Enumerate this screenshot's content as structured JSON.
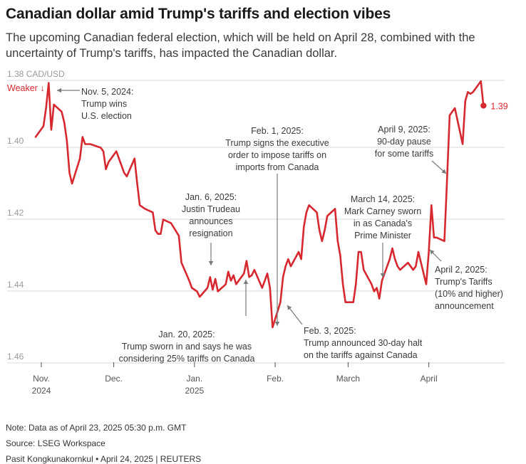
{
  "header": {
    "title": "Canadian dollar amid Trump's tariffs and election vibes",
    "subtitle": "The upcoming Canadian federal election, which will be held on April 28, combined with the uncertainty of Trump's tariffs, has impacted the Canadian dollar."
  },
  "footer": {
    "note": "Note: Data as of April 23, 2025 05:30 p.m. GMT",
    "source": "Source: LSEG Workspace",
    "credit": "Pasit Kongkunakornkul • April 24, 2025 | REUTERS"
  },
  "colors": {
    "line": "#d7282f",
    "grid": "#d9d9d9",
    "annotation": "#3a3a3a",
    "arrow": "#7a7a7a"
  },
  "chart_data": {
    "type": "line",
    "y_unit_label": "1.38 CAD/USD",
    "y_direction_label": "Weaker ↓",
    "y_reversed": true,
    "ylim": [
      1.38,
      1.46
    ],
    "y_ticks": [
      "1.40",
      "1.42",
      "1.44",
      "1.46"
    ],
    "y_tick_values": [
      1.4,
      1.42,
      1.44,
      1.46
    ],
    "x_ticks": [
      {
        "date": "2024-11-01",
        "label": [
          "Nov.",
          "2024"
        ]
      },
      {
        "date": "2024-12-01",
        "label": [
          "Dec."
        ]
      },
      {
        "date": "2025-01-01",
        "label": [
          "Jan.",
          "2025"
        ]
      },
      {
        "date": "2025-02-01",
        "label": [
          "Feb."
        ]
      },
      {
        "date": "2025-03-01",
        "label": [
          "March"
        ]
      },
      {
        "date": "2025-04-01",
        "label": [
          "April"
        ]
      }
    ],
    "xlim": [
      "2024-11-01",
      "2025-04-23"
    ],
    "last_value_label": "1.39",
    "series": [
      {
        "points": [
          [
            "2024-11-01",
            1.3975
          ],
          [
            "2024-11-04",
            1.3945
          ],
          [
            "2024-11-05",
            1.3895
          ],
          [
            "2024-11-06",
            1.3825
          ],
          [
            "2024-11-07",
            1.3955
          ],
          [
            "2024-11-08",
            1.3885
          ],
          [
            "2024-11-11",
            1.3905
          ],
          [
            "2024-11-12",
            1.3935
          ],
          [
            "2024-11-13",
            1.3985
          ],
          [
            "2024-11-14",
            1.4075
          ],
          [
            "2024-11-15",
            1.4105
          ],
          [
            "2024-11-18",
            1.4035
          ],
          [
            "2024-11-19",
            1.3975
          ],
          [
            "2024-11-20",
            1.3995
          ],
          [
            "2024-11-22",
            1.3995
          ],
          [
            "2024-11-26",
            1.4005
          ],
          [
            "2024-11-27",
            1.4015
          ],
          [
            "2024-11-28",
            1.4065
          ],
          [
            "2024-11-29",
            1.4045
          ],
          [
            "2024-12-02",
            1.4015
          ],
          [
            "2024-12-05",
            1.4075
          ],
          [
            "2024-12-06",
            1.4085
          ],
          [
            "2024-12-09",
            1.4035
          ],
          [
            "2024-12-10",
            1.4105
          ],
          [
            "2024-12-11",
            1.4165
          ],
          [
            "2024-12-13",
            1.4175
          ],
          [
            "2024-12-16",
            1.4185
          ],
          [
            "2024-12-17",
            1.4235
          ],
          [
            "2024-12-18",
            1.4245
          ],
          [
            "2024-12-19",
            1.4245
          ],
          [
            "2024-12-20",
            1.4205
          ],
          [
            "2024-12-23",
            1.4215
          ],
          [
            "2024-12-26",
            1.425
          ],
          [
            "2024-12-27",
            1.4325
          ],
          [
            "2024-12-30",
            1.4375
          ],
          [
            "2024-12-31",
            1.4395
          ],
          [
            "2025-01-02",
            1.4405
          ],
          [
            "2025-01-03",
            1.442
          ],
          [
            "2025-01-06",
            1.4395
          ],
          [
            "2025-01-07",
            1.4365
          ],
          [
            "2025-01-08",
            1.44
          ],
          [
            "2025-01-09",
            1.437
          ],
          [
            "2025-01-10",
            1.4405
          ],
          [
            "2025-01-13",
            1.4385
          ],
          [
            "2025-01-14",
            1.435
          ],
          [
            "2025-01-15",
            1.4375
          ],
          [
            "2025-01-16",
            1.436
          ],
          [
            "2025-01-17",
            1.4385
          ],
          [
            "2025-01-20",
            1.4355
          ],
          [
            "2025-01-21",
            1.432
          ],
          [
            "2025-01-22",
            1.4365
          ],
          [
            "2025-01-23",
            1.436
          ],
          [
            "2025-01-24",
            1.4345
          ],
          [
            "2025-01-27",
            1.4395
          ],
          [
            "2025-01-28",
            1.4375
          ],
          [
            "2025-01-29",
            1.4355
          ],
          [
            "2025-01-30",
            1.4395
          ],
          [
            "2025-01-31",
            1.4505
          ],
          [
            "2025-02-03",
            1.4435
          ],
          [
            "2025-02-04",
            1.4365
          ],
          [
            "2025-02-05",
            1.4335
          ],
          [
            "2025-02-06",
            1.4315
          ],
          [
            "2025-02-07",
            1.4335
          ],
          [
            "2025-02-10",
            1.4295
          ],
          [
            "2025-02-11",
            1.4315
          ],
          [
            "2025-02-12",
            1.4225
          ],
          [
            "2025-02-13",
            1.4185
          ],
          [
            "2025-02-14",
            1.4165
          ],
          [
            "2025-02-17",
            1.4185
          ],
          [
            "2025-02-18",
            1.4235
          ],
          [
            "2025-02-19",
            1.4265
          ],
          [
            "2025-02-20",
            1.4235
          ],
          [
            "2025-02-21",
            1.4195
          ],
          [
            "2025-02-24",
            1.4175
          ],
          [
            "2025-02-25",
            1.4265
          ],
          [
            "2025-02-26",
            1.4305
          ],
          [
            "2025-02-27",
            1.4385
          ],
          [
            "2025-02-28",
            1.4435
          ],
          [
            "2025-03-03",
            1.4435
          ],
          [
            "2025-03-04",
            1.4385
          ],
          [
            "2025-03-05",
            1.4295
          ],
          [
            "2025-03-06",
            1.4295
          ],
          [
            "2025-03-07",
            1.4345
          ],
          [
            "2025-03-10",
            1.4385
          ],
          [
            "2025-03-11",
            1.4405
          ],
          [
            "2025-03-12",
            1.4395
          ],
          [
            "2025-03-13",
            1.4425
          ],
          [
            "2025-03-14",
            1.4375
          ],
          [
            "2025-03-17",
            1.4315
          ],
          [
            "2025-03-18",
            1.4285
          ],
          [
            "2025-03-19",
            1.4315
          ],
          [
            "2025-03-20",
            1.4335
          ],
          [
            "2025-03-21",
            1.4345
          ],
          [
            "2025-03-24",
            1.4325
          ],
          [
            "2025-03-25",
            1.4335
          ],
          [
            "2025-03-26",
            1.4345
          ],
          [
            "2025-03-27",
            1.4335
          ],
          [
            "2025-03-28",
            1.4295
          ],
          [
            "2025-03-31",
            1.4385
          ],
          [
            "2025-04-01",
            1.4295
          ],
          [
            "2025-04-02",
            1.4165
          ],
          [
            "2025-04-03",
            1.4255
          ],
          [
            "2025-04-04",
            1.4255
          ],
          [
            "2025-04-07",
            1.4265
          ],
          [
            "2025-04-08",
            1.4095
          ],
          [
            "2025-04-09",
            1.3915
          ],
          [
            "2025-04-10",
            1.3905
          ],
          [
            "2025-04-11",
            1.3895
          ],
          [
            "2025-04-14",
            1.3995
          ],
          [
            "2025-04-15",
            1.3875
          ],
          [
            "2025-04-16",
            1.385
          ],
          [
            "2025-04-17",
            1.3855
          ],
          [
            "2025-04-18",
            1.385
          ],
          [
            "2025-04-21",
            1.382
          ],
          [
            "2025-04-22",
            1.3888
          ]
        ]
      }
    ],
    "annotations": [
      {
        "date": "2024-11-06",
        "lines": [
          "Nov. 5, 2024:",
          "Trump wins",
          "U.S. election"
        ]
      },
      {
        "date": "2025-01-06",
        "lines": [
          "Jan. 6, 2025:",
          "Justin Trudeau",
          "announces",
          "resignation"
        ]
      },
      {
        "date": "2025-01-20",
        "lines": [
          "Jan. 20, 2025:",
          "Trump sworn in and says he was",
          "considering 25% tariffs on Canada"
        ]
      },
      {
        "date": "2025-02-01",
        "lines": [
          "Feb. 1, 2025:",
          "Trump signs the executive",
          "order to impose tariffs on",
          "imports from Canada"
        ]
      },
      {
        "date": "2025-02-03",
        "lines": [
          "Feb. 3, 2025:",
          "Trump announced 30-day halt",
          "on the tariffs against Canada"
        ]
      },
      {
        "date": "2025-03-14",
        "lines": [
          "March 14, 2025:",
          "Mark Carney sworn",
          "in as Canada's",
          "Prime Minister"
        ]
      },
      {
        "date": "2025-04-09",
        "lines": [
          "April 9, 2025:",
          "90-day pause",
          "for some tariffs"
        ]
      },
      {
        "date": "2025-04-02",
        "lines": [
          "April 2, 2025:",
          "Trump's Tariffs",
          "(10% and higher)",
          "announcement"
        ]
      }
    ]
  }
}
